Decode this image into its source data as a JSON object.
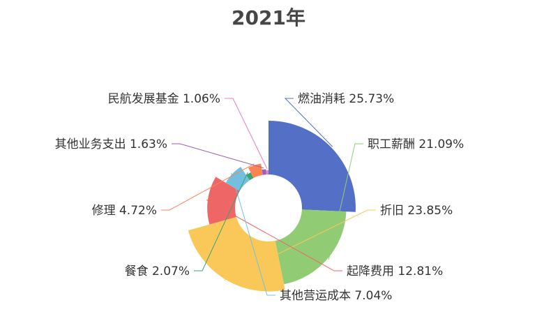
{
  "chart_data": {
    "type": "pie",
    "variant": "rose",
    "title": "2021年",
    "series": [
      {
        "name": "燃油消耗",
        "value": 25.73,
        "label": "燃油消耗 25.73%",
        "color": "#5470c6"
      },
      {
        "name": "职工薪酬",
        "value": 21.09,
        "label": "职工薪酬 21.09%",
        "color": "#91cc75"
      },
      {
        "name": "折旧",
        "value": 23.85,
        "label": "折旧 23.85%",
        "color": "#fac858"
      },
      {
        "name": "起降费用",
        "value": 12.81,
        "label": "起降费用 12.81%",
        "color": "#ee6666"
      },
      {
        "name": "其他营运成本",
        "value": 7.04,
        "label": "其他营运成本 7.04%",
        "color": "#73c0de"
      },
      {
        "name": "餐食",
        "value": 2.07,
        "label": "餐食 2.07%",
        "color": "#3ba272"
      },
      {
        "name": "修理",
        "value": 4.72,
        "label": "修理 4.72%",
        "color": "#fc8452"
      },
      {
        "name": "其他业务支出",
        "value": 1.63,
        "label": "其他业务支出 1.63%",
        "color": "#9a60b4"
      },
      {
        "name": "民航发展基金",
        "value": 1.06,
        "label": "民航发展基金 1.06%",
        "color": "#ea7ccc"
      }
    ]
  }
}
